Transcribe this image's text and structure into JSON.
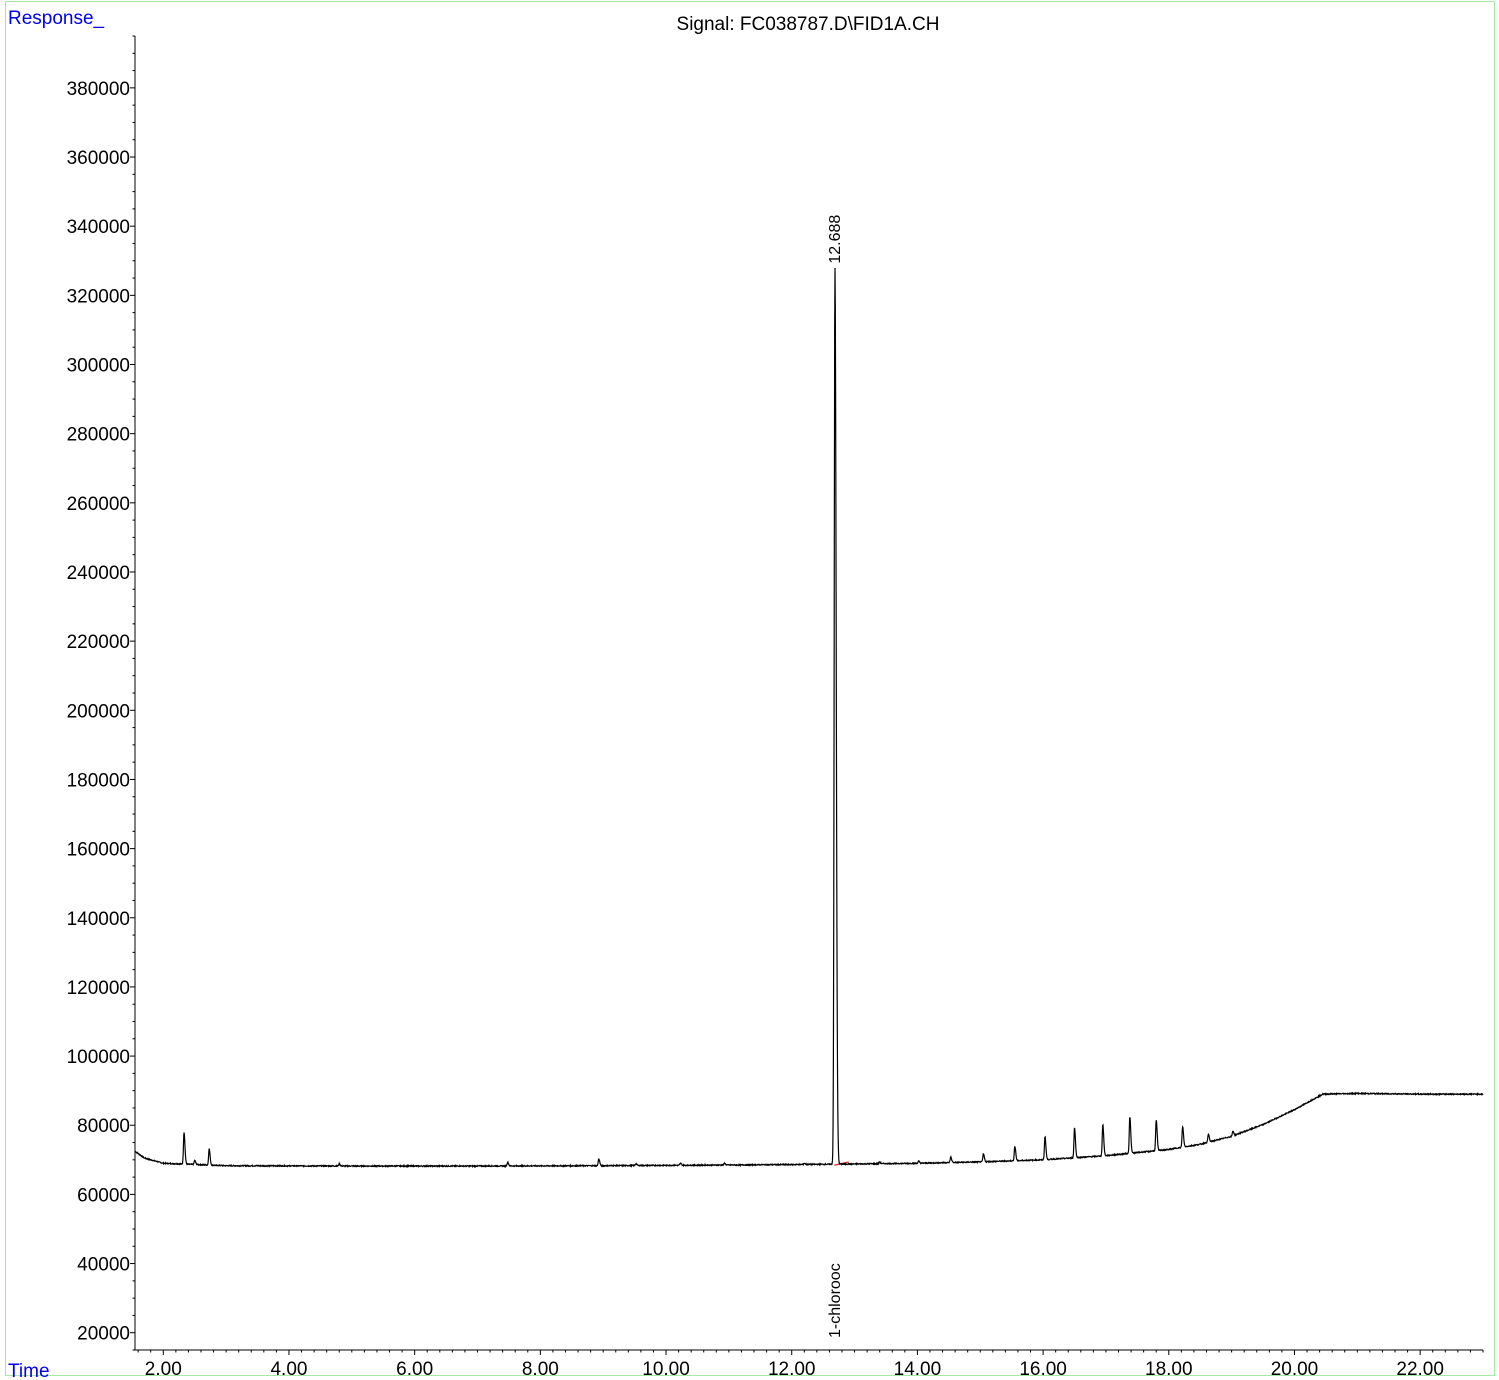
{
  "chart_data": {
    "type": "line",
    "title": "Signal: FC038787.D\\FID1A.CH",
    "ylabel": "Response_",
    "xlabel": "Time",
    "xlim": [
      1.55,
      23.0
    ],
    "ylim": [
      15000,
      395000
    ],
    "x_ticks": [
      2.0,
      4.0,
      6.0,
      8.0,
      10.0,
      12.0,
      14.0,
      16.0,
      18.0,
      20.0,
      22.0
    ],
    "x_tick_labels": [
      "2.00",
      "4.00",
      "6.00",
      "8.00",
      "10.00",
      "12.00",
      "14.00",
      "16.00",
      "18.00",
      "20.00",
      "22.00"
    ],
    "y_ticks": [
      20000,
      40000,
      60000,
      80000,
      100000,
      120000,
      140000,
      160000,
      180000,
      200000,
      220000,
      240000,
      260000,
      280000,
      300000,
      320000,
      340000,
      360000,
      380000
    ],
    "y_tick_labels": [
      "20000",
      "40000",
      "60000",
      "80000",
      "100000",
      "120000",
      "140000",
      "160000",
      "180000",
      "200000",
      "220000",
      "240000",
      "260000",
      "280000",
      "300000",
      "320000",
      "340000",
      "360000",
      "380000"
    ],
    "baseline_points": [
      [
        1.55,
        72500
      ],
      [
        1.7,
        70500
      ],
      [
        2.0,
        69000
      ],
      [
        3.0,
        68300
      ],
      [
        5.0,
        68200
      ],
      [
        7.0,
        68200
      ],
      [
        9.0,
        68300
      ],
      [
        11.0,
        68500
      ],
      [
        12.5,
        68700
      ],
      [
        13.0,
        68800
      ],
      [
        14.0,
        69000
      ],
      [
        15.0,
        69400
      ],
      [
        16.0,
        70000
      ],
      [
        17.0,
        71200
      ],
      [
        18.0,
        73000
      ],
      [
        18.5,
        74500
      ],
      [
        19.0,
        76800
      ],
      [
        19.5,
        80200
      ],
      [
        20.0,
        84500
      ],
      [
        20.45,
        89000
      ],
      [
        21.0,
        89200
      ],
      [
        22.0,
        89000
      ],
      [
        23.0,
        89000
      ]
    ],
    "peaks": [
      {
        "rt": 2.33,
        "height": 78000
      },
      {
        "rt": 2.5,
        "height": 69800
      },
      {
        "rt": 2.73,
        "height": 73200
      },
      {
        "rt": 4.8,
        "height": 68800
      },
      {
        "rt": 7.48,
        "height": 69300
      },
      {
        "rt": 8.93,
        "height": 70300
      },
      {
        "rt": 9.52,
        "height": 68900
      },
      {
        "rt": 10.23,
        "height": 69000
      },
      {
        "rt": 10.93,
        "height": 69000
      },
      {
        "rt": 12.2,
        "height": 69000
      },
      {
        "rt": 12.688,
        "height": 328000
      },
      {
        "rt": 13.4,
        "height": 69400
      },
      {
        "rt": 14.02,
        "height": 69600
      },
      {
        "rt": 14.53,
        "height": 70800
      },
      {
        "rt": 15.05,
        "height": 71700
      },
      {
        "rt": 15.55,
        "height": 73900
      },
      {
        "rt": 16.03,
        "height": 76700
      },
      {
        "rt": 16.5,
        "height": 79300
      },
      {
        "rt": 16.95,
        "height": 80200
      },
      {
        "rt": 17.38,
        "height": 82500
      },
      {
        "rt": 17.8,
        "height": 81500
      },
      {
        "rt": 18.22,
        "height": 79600
      },
      {
        "rt": 18.63,
        "height": 77400
      },
      {
        "rt": 19.02,
        "height": 78300
      }
    ],
    "annotations": [
      {
        "label": "12.688",
        "x": 12.688,
        "y": 328000,
        "color": "#0000ee"
      },
      {
        "label": "1-chlorooc",
        "x": 12.688,
        "y": 20000,
        "color": "#000000"
      }
    ],
    "grid": false,
    "line_color": "#000000",
    "integration_marker_color": "#e03030"
  }
}
